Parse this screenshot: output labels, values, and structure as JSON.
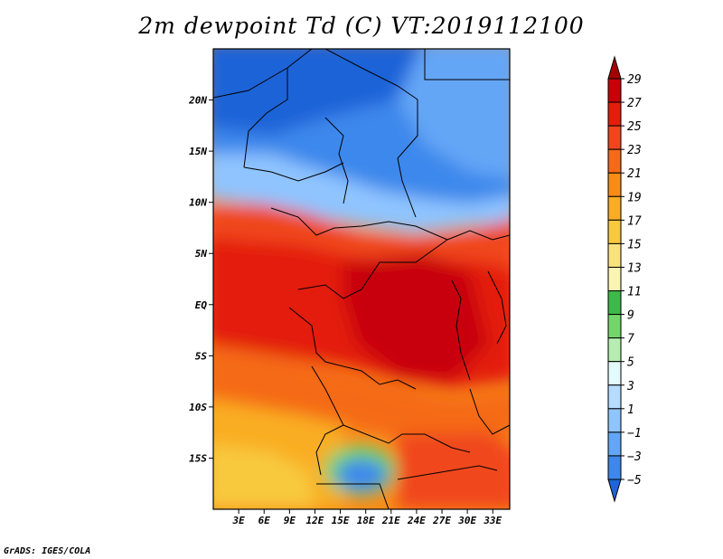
{
  "title": "2m dewpoint Td (C) VT:2019112100",
  "credit": "GrADS: IGES/COLA",
  "map": {
    "lat_range": [
      -20,
      25
    ],
    "lon_range": [
      0,
      35
    ],
    "lat_ticks": [
      {
        "value": 20,
        "label": "20N"
      },
      {
        "value": 15,
        "label": "15N"
      },
      {
        "value": 10,
        "label": "10N"
      },
      {
        "value": 5,
        "label": "5N"
      },
      {
        "value": 0,
        "label": "EQ"
      },
      {
        "value": -5,
        "label": "5S"
      },
      {
        "value": -10,
        "label": "10S"
      },
      {
        "value": -15,
        "label": "15S"
      }
    ],
    "lon_ticks": [
      {
        "value": 3,
        "label": "3E"
      },
      {
        "value": 6,
        "label": "6E"
      },
      {
        "value": 9,
        "label": "9E"
      },
      {
        "value": 12,
        "label": "12E"
      },
      {
        "value": 15,
        "label": "15E"
      },
      {
        "value": 18,
        "label": "18E"
      },
      {
        "value": 21,
        "label": "21E"
      },
      {
        "value": 24,
        "label": "24E"
      },
      {
        "value": 27,
        "label": "27E"
      },
      {
        "value": 30,
        "label": "30E"
      },
      {
        "value": 33,
        "label": "33E"
      }
    ]
  },
  "colorbar": {
    "levels": [
      29,
      27,
      25,
      23,
      21,
      19,
      17,
      15,
      13,
      11,
      9,
      7,
      5,
      3,
      1,
      -1,
      -3,
      -5
    ],
    "labels": [
      "29",
      "27",
      "25",
      "23",
      "21",
      "19",
      "17",
      "15",
      "13",
      "11",
      "9",
      "7",
      "5",
      "3",
      "1",
      "−1",
      "−3",
      "−5"
    ],
    "colors": [
      "#a50000",
      "#c8000a",
      "#e31e0a",
      "#f0461e",
      "#f56a19",
      "#f98c16",
      "#f9ad24",
      "#f8c93e",
      "#f9e27e",
      "#fbf5b4",
      "#3fb84a",
      "#72d66a",
      "#b5eeb0",
      "#e4fbfd",
      "#b6dcff",
      "#8fc4ff",
      "#63a6f6",
      "#3e88ec",
      "#1e64d8"
    ]
  }
}
